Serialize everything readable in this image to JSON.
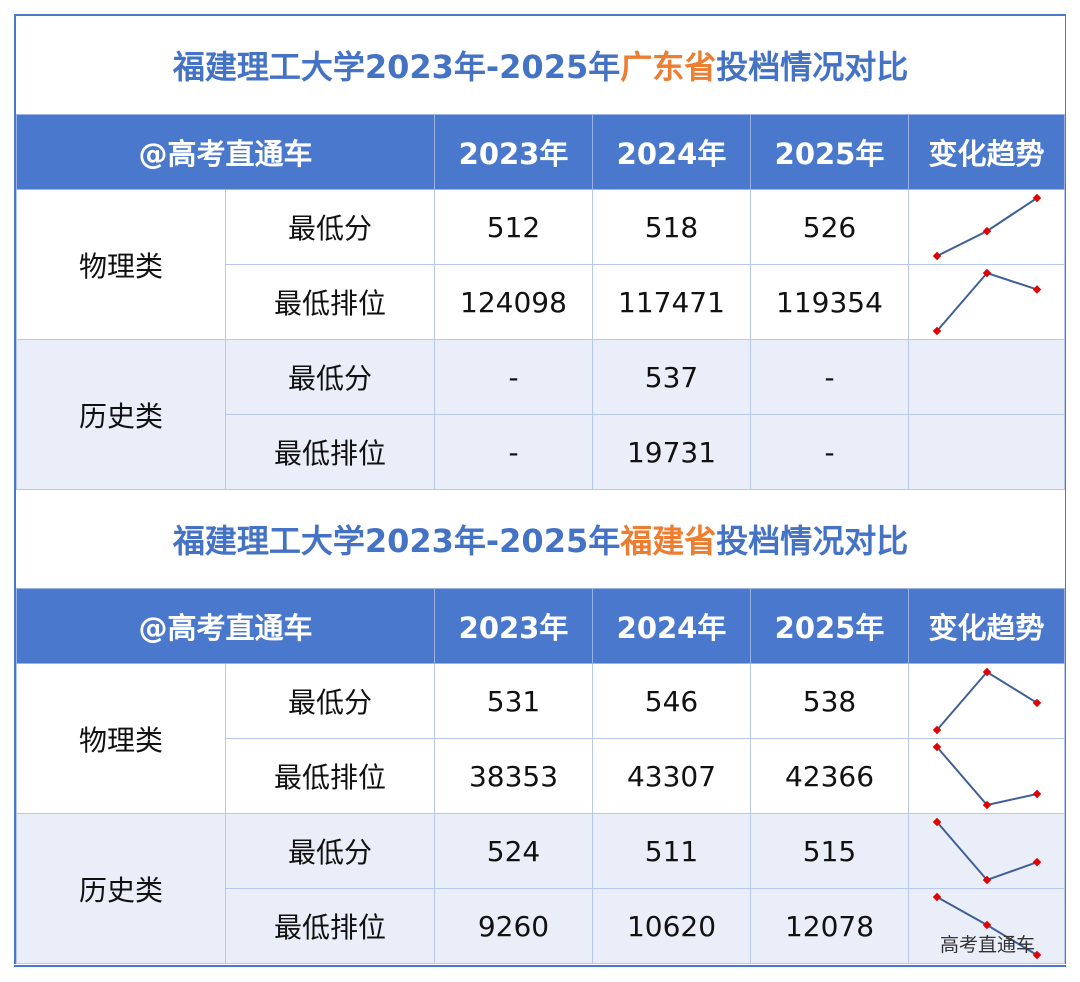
{
  "tables": [
    {
      "title_pre": "福建理工大学2023年-2025年",
      "title_hl": "广东省",
      "title_post": "投档情况对比",
      "header": [
        "@高考直通车",
        "2023年",
        "2024年",
        "2025年",
        "变化趋势"
      ],
      "groups": [
        {
          "name": "物理类",
          "rows": [
            {
              "label": "最低分",
              "values": [
                "512",
                "518",
                "526"
              ],
              "trend": [
                512,
                518,
                526
              ],
              "reversed": false
            },
            {
              "label": "最低排位",
              "values": [
                "124098",
                "117471",
                "119354"
              ],
              "trend": [
                124098,
                117471,
                119354
              ],
              "reversed": true
            }
          ]
        },
        {
          "name": "历史类",
          "rows": [
            {
              "label": "最低分",
              "values": [
                "-",
                "537",
                "-"
              ],
              "trend": null,
              "reversed": false
            },
            {
              "label": "最低排位",
              "values": [
                "-",
                "19731",
                "-"
              ],
              "trend": null,
              "reversed": true
            }
          ]
        }
      ]
    },
    {
      "title_pre": "福建理工大学2023年-2025年",
      "title_hl": "福建省",
      "title_post": "投档情况对比",
      "header": [
        "@高考直通车",
        "2023年",
        "2024年",
        "2025年",
        "变化趋势"
      ],
      "groups": [
        {
          "name": "物理类",
          "rows": [
            {
              "label": "最低分",
              "values": [
                "531",
                "546",
                "538"
              ],
              "trend": [
                531,
                546,
                538
              ],
              "reversed": false
            },
            {
              "label": "最低排位",
              "values": [
                "38353",
                "43307",
                "42366"
              ],
              "trend": [
                38353,
                43307,
                42366
              ],
              "reversed": true
            }
          ]
        },
        {
          "name": "历史类",
          "rows": [
            {
              "label": "最低分",
              "values": [
                "524",
                "511",
                "515"
              ],
              "trend": [
                524,
                511,
                515
              ],
              "reversed": false
            },
            {
              "label": "最低排位",
              "values": [
                "9260",
                "10620",
                "12078"
              ],
              "trend": [
                9260,
                10620,
                12078
              ],
              "reversed": true
            }
          ]
        }
      ]
    }
  ],
  "watermark": "高考直通车",
  "colors": {
    "header": "#4a78cc",
    "title": "#4472c4",
    "highlight": "#ed7d31",
    "line": "#3f5f95",
    "marker": "#e00000"
  }
}
